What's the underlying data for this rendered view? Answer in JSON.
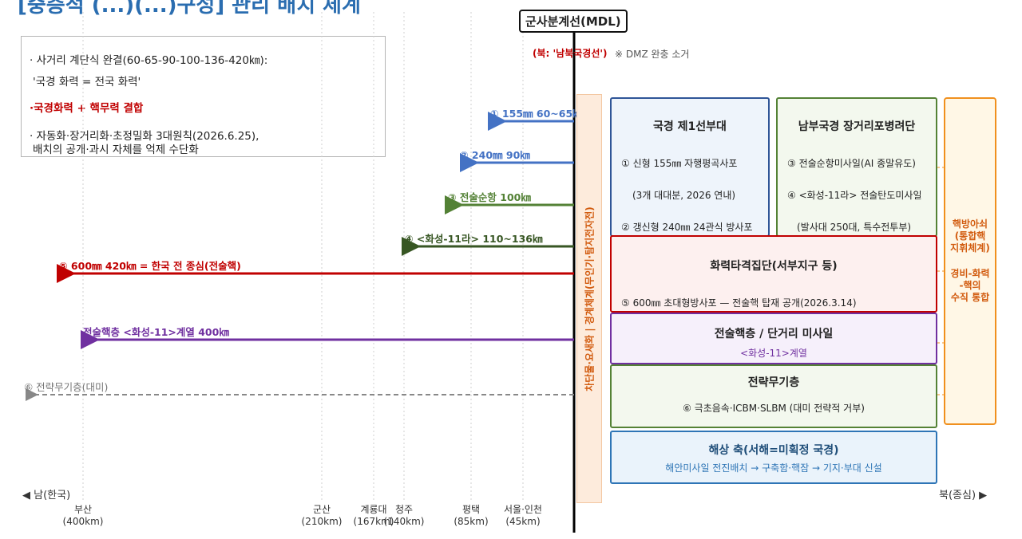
{
  "title": "[중층적 (...)(...)구성] 관리 배치 체계",
  "mdl_label": "군사분계선(MDL)",
  "north_border_label": "(북: '남북국경선')",
  "dmz_note": "※ DMZ 완충 소거",
  "info_box": {
    "line1": "· 사거리 계단식 완결(60-65-90-100-136-420㎞):",
    "line2": "'국경 화력 = 전국 화력'",
    "line3": "·국경화력 + 핵무력 결합",
    "line4a": "· 자동화·장거리화·초정밀화 3대원칙(2026.6.25),",
    "line4b": "배치의 공개·과시 자체를 억제 수단화"
  },
  "arrows": [
    {
      "id": "a1",
      "label": "① 155㎜ 60~65㎞",
      "range_km": 65,
      "color": "#4472c4",
      "style": "solid"
    },
    {
      "id": "a2",
      "label": "② 240㎜ 90㎞",
      "range_km": 90,
      "color": "#4472c4",
      "style": "solid"
    },
    {
      "id": "a3",
      "label": "③ 전술순항 100㎞",
      "range_km": 100,
      "color": "#538135",
      "style": "solid"
    },
    {
      "id": "a4",
      "label": "④ <화성-11라> 110~136㎞",
      "range_km": 136,
      "color": "#375623",
      "style": "solid"
    },
    {
      "id": "a5",
      "label": "⑤ 600㎜ 420㎞ = 한국 전 종심(전술핵)",
      "range_km": 420,
      "color": "#c00000",
      "style": "solid"
    },
    {
      "id": "a6",
      "label": "전술핵층 <화성-11>계열 400㎞",
      "range_km": 400,
      "color": "#7030a0",
      "style": "solid"
    },
    {
      "id": "a7",
      "label": "⑥ 전략무기층(대미)",
      "range_km": null,
      "color": "#888888",
      "style": "dashed"
    }
  ],
  "buffer_label": "차단물·요새화 | 경계체계(무인기·탐지전자전)",
  "boxes": {
    "first_line": {
      "title": "국경 제1선부대",
      "l1": "① 신형 155㎜ 자행평곡사포",
      "l2": "(3개 대대분, 2026 연내)",
      "l3": "② 갱신형 240㎜ 24관식 방사포"
    },
    "artillery": {
      "title": "남부국경 장거리포병려단",
      "l1": "③ 전술순항미사일(AI 종말유도)",
      "l2": "④ <화성-11라> 전술탄도미사일",
      "l3": "(발사대 250대, 특수전투부)"
    },
    "strike": {
      "title": "화력타격집단(서부지구 등)",
      "l1": "⑤ 600㎜ 초대형방사포 — 전술핵 탑재 공개(2026.3.14)"
    },
    "tactical_nuke": {
      "title": "전술핵층 / 단거리 미사일",
      "l1": "<화성-11>계열"
    },
    "strategic": {
      "title": "전략무기층",
      "l1": "⑥ 극초음속·ICBM·SLBM (대미 전략적 거부)"
    },
    "maritime": {
      "title": "해상 축(서해=미획정 국경)",
      "l1": "해안미사일 전진배치 → 구축함·핵잠 → 기지·부대 신설"
    }
  },
  "nuclear_box": {
    "l1": "핵방아쇠",
    "l2": "(통합핵",
    "l3": "지휘체계)",
    "l4": "경비-화력",
    "l5": "-핵의",
    "l6": "수직 통합"
  },
  "axis": {
    "south_label": "◀ 남(한국)",
    "north_label": "북(종심) ▶",
    "cities": [
      {
        "name": "부산",
        "dist": "(400km)"
      },
      {
        "name": "군산",
        "dist": "(210km)"
      },
      {
        "name": "계룡대",
        "dist": "(167km)"
      },
      {
        "name": "청주",
        "dist": "(140km)"
      },
      {
        "name": "평택",
        "dist": "(85km)"
      },
      {
        "name": "서울·인천",
        "dist": "(45km)"
      }
    ]
  },
  "colors": {
    "title": "#2a6db0",
    "blue": "#4472c4",
    "green": "#538135",
    "darkgreen": "#375623",
    "red": "#c00000",
    "purple": "#7030a0",
    "gray": "#888888",
    "orange": "#f0901e"
  }
}
